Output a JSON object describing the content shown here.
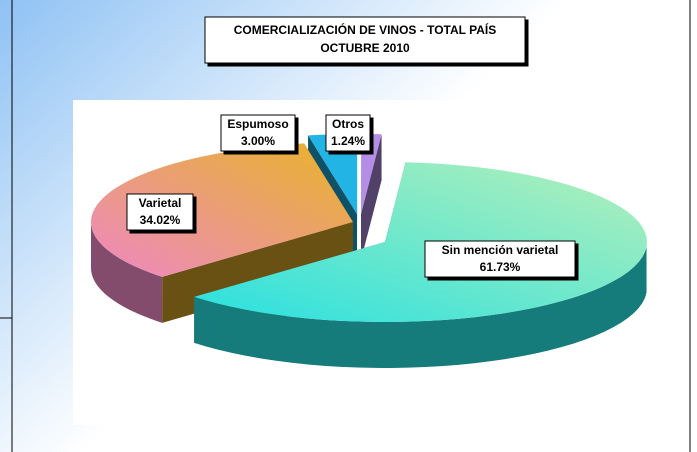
{
  "chart_data": {
    "type": "pie",
    "title": [
      "COMERCIALIZACIÓN DE VINOS - TOTAL PAÍS",
      "OCTUBRE 2010"
    ],
    "categories": [
      "Sin mención varietal",
      "Varietal",
      "Espumoso",
      "Otros"
    ],
    "values": [
      61.73,
      34.02,
      3.0,
      1.24
    ],
    "value_labels": [
      "61.73%",
      "34.02%",
      "3.00%",
      "1.24%"
    ],
    "colors": [
      "#28e0e0",
      "#ee88c4",
      "#22b4e4",
      "#b48ee6"
    ],
    "colors2": [
      "#b8f0b8",
      "#e8b428",
      "#22b4e4",
      "#b48ee6"
    ]
  }
}
